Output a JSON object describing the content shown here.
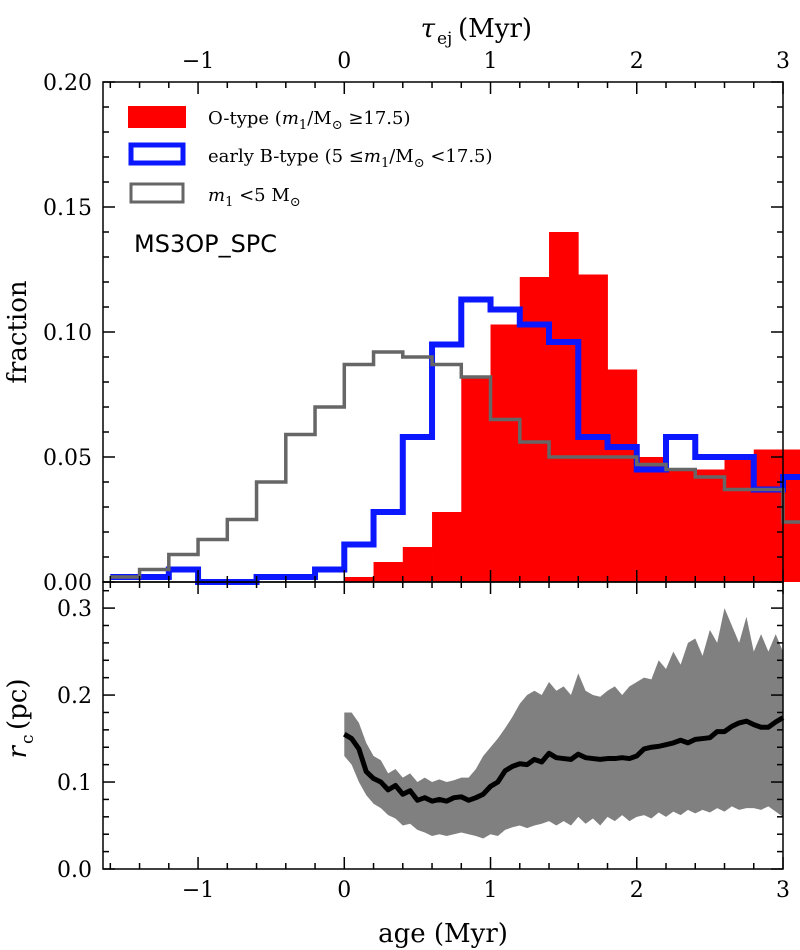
{
  "chart_data": [
    {
      "type": "bar",
      "panel": "top",
      "xlabel_top_symbol": "τ",
      "xlabel_top_sub": "ej",
      "xlabel_top_unit": "(Myr)",
      "ylabel": "fraction",
      "xlim": [
        -1.65,
        3.0
      ],
      "ylim": [
        0.0,
        0.2
      ],
      "x_ticks": [
        -1,
        0,
        1,
        2,
        3
      ],
      "x_tick_labels": [
        "−1",
        "0",
        "1",
        "2",
        "3"
      ],
      "y_ticks": [
        0.0,
        0.05,
        0.1,
        0.15,
        0.2
      ],
      "y_tick_labels": [
        "0.00",
        "0.05",
        "0.10",
        "0.15",
        "0.20"
      ],
      "bin_width": 0.2,
      "bin_edges_start": -1.6,
      "annotation": "MS3OP_SPC",
      "series": [
        {
          "name": "O-type (m1/M⊙ ≥17.5)",
          "style": "filled",
          "color": "#ff0000",
          "values": [
            0,
            0,
            0,
            0,
            0,
            0,
            0,
            0,
            0.002,
            0.008,
            0.014,
            0.028,
            0.082,
            0.103,
            0.122,
            0.14,
            0.123,
            0.085,
            0.05,
            0.045,
            0.045,
            0.05,
            0.053,
            0.053,
            0.037,
            0.022,
            0.032,
            0.028
          ]
        },
        {
          "name": "early B-type (5 ≤m1/M⊙ <17.5)",
          "style": "step",
          "color": "#0a17ff",
          "values": [
            0.002,
            0.002,
            0.005,
            0,
            0,
            0.002,
            0.002,
            0.005,
            0.015,
            0.028,
            0.058,
            0.095,
            0.113,
            0.109,
            0.103,
            0.096,
            0.058,
            0.054,
            0.045,
            0.058,
            0.05,
            0.05,
            0.037,
            0.042,
            0.035,
            0.027,
            0.011,
            0.005
          ]
        },
        {
          "name": "m1 <5 M⊙",
          "style": "step",
          "color": "#666666",
          "values": [
            0.002,
            0.005,
            0.011,
            0.017,
            0.025,
            0.04,
            0.059,
            0.07,
            0.087,
            0.092,
            0.09,
            0.087,
            0.082,
            0.065,
            0.056,
            0.05,
            0.05,
            0.05,
            0.047,
            0.045,
            0.042,
            0.037,
            0.037,
            0.024,
            0.009,
            0.0,
            0,
            0
          ]
        }
      ]
    },
    {
      "type": "line",
      "panel": "bottom",
      "xlabel": "age (Myr)",
      "ylabel_symbol": "r",
      "ylabel_sub": "c",
      "ylabel_unit": "(pc)",
      "xlim": [
        -1.65,
        3.0
      ],
      "ylim": [
        0.0,
        0.33
      ],
      "x_ticks": [
        -1,
        0,
        1,
        2,
        3
      ],
      "x_tick_labels": [
        "−1",
        "0",
        "1",
        "2",
        "3"
      ],
      "y_ticks": [
        0.0,
        0.1,
        0.2,
        0.3
      ],
      "y_tick_labels": [
        "0.0",
        "0.1",
        "0.2",
        "0.3"
      ],
      "x": [
        0.0,
        0.05,
        0.1,
        0.15,
        0.2,
        0.25,
        0.3,
        0.35,
        0.4,
        0.45,
        0.5,
        0.55,
        0.6,
        0.65,
        0.7,
        0.75,
        0.8,
        0.85,
        0.9,
        0.95,
        1.0,
        1.05,
        1.1,
        1.15,
        1.2,
        1.25,
        1.3,
        1.35,
        1.4,
        1.45,
        1.5,
        1.55,
        1.6,
        1.65,
        1.7,
        1.75,
        1.8,
        1.85,
        1.9,
        1.95,
        2.0,
        2.05,
        2.1,
        2.15,
        2.2,
        2.25,
        2.3,
        2.35,
        2.4,
        2.45,
        2.5,
        2.55,
        2.6,
        2.65,
        2.7,
        2.75,
        2.8,
        2.85,
        2.9,
        2.95,
        3.0
      ],
      "series": [
        {
          "name": "median",
          "color": "#000000",
          "values": [
            0.155,
            0.15,
            0.138,
            0.112,
            0.104,
            0.1,
            0.091,
            0.096,
            0.086,
            0.09,
            0.079,
            0.082,
            0.078,
            0.08,
            0.078,
            0.082,
            0.083,
            0.079,
            0.082,
            0.086,
            0.095,
            0.1,
            0.113,
            0.118,
            0.121,
            0.12,
            0.126,
            0.123,
            0.133,
            0.128,
            0.127,
            0.126,
            0.132,
            0.128,
            0.127,
            0.126,
            0.127,
            0.127,
            0.128,
            0.127,
            0.13,
            0.138,
            0.14,
            0.141,
            0.143,
            0.145,
            0.148,
            0.145,
            0.149,
            0.15,
            0.151,
            0.158,
            0.158,
            0.164,
            0.168,
            0.17,
            0.166,
            0.163,
            0.163,
            0.169,
            0.174
          ]
        },
        {
          "name": "upper",
          "color": "#808080",
          "values": [
            0.18,
            0.18,
            0.168,
            0.145,
            0.13,
            0.125,
            0.11,
            0.115,
            0.105,
            0.11,
            0.1,
            0.105,
            0.1,
            0.103,
            0.1,
            0.102,
            0.105,
            0.105,
            0.115,
            0.13,
            0.14,
            0.15,
            0.162,
            0.175,
            0.19,
            0.2,
            0.205,
            0.2,
            0.215,
            0.205,
            0.21,
            0.2,
            0.225,
            0.205,
            0.2,
            0.198,
            0.205,
            0.21,
            0.2,
            0.21,
            0.215,
            0.22,
            0.218,
            0.24,
            0.23,
            0.25,
            0.235,
            0.26,
            0.265,
            0.245,
            0.275,
            0.26,
            0.3,
            0.28,
            0.26,
            0.29,
            0.25,
            0.27,
            0.25,
            0.27,
            0.25
          ]
        },
        {
          "name": "lower",
          "color": "#808080",
          "values": [
            0.13,
            0.12,
            0.1,
            0.085,
            0.075,
            0.07,
            0.062,
            0.058,
            0.05,
            0.052,
            0.045,
            0.042,
            0.038,
            0.04,
            0.038,
            0.04,
            0.042,
            0.04,
            0.038,
            0.035,
            0.04,
            0.038,
            0.045,
            0.048,
            0.05,
            0.047,
            0.05,
            0.052,
            0.055,
            0.05,
            0.055,
            0.05,
            0.06,
            0.052,
            0.058,
            0.05,
            0.06,
            0.055,
            0.062,
            0.055,
            0.06,
            0.062,
            0.058,
            0.065,
            0.06,
            0.066,
            0.062,
            0.068,
            0.064,
            0.068,
            0.065,
            0.07,
            0.066,
            0.072,
            0.068,
            0.07,
            0.07,
            0.068,
            0.072,
            0.066,
            0.06
          ]
        }
      ]
    }
  ],
  "legend": {
    "otype_label": "O-type (",
    "otype_math": "m",
    "otype_sub": "1",
    "otype_mid": "/M",
    "otype_tail": " ≥17.5)",
    "btype_label": "early B-type (5 ≤",
    "btype_math": "m",
    "btype_sub": "1",
    "btype_mid": "/M",
    "btype_tail": " <17.5)",
    "low_math": "m",
    "low_sub": "1",
    "low_tail": " <5 M",
    "sun_symbol": "⊙"
  }
}
